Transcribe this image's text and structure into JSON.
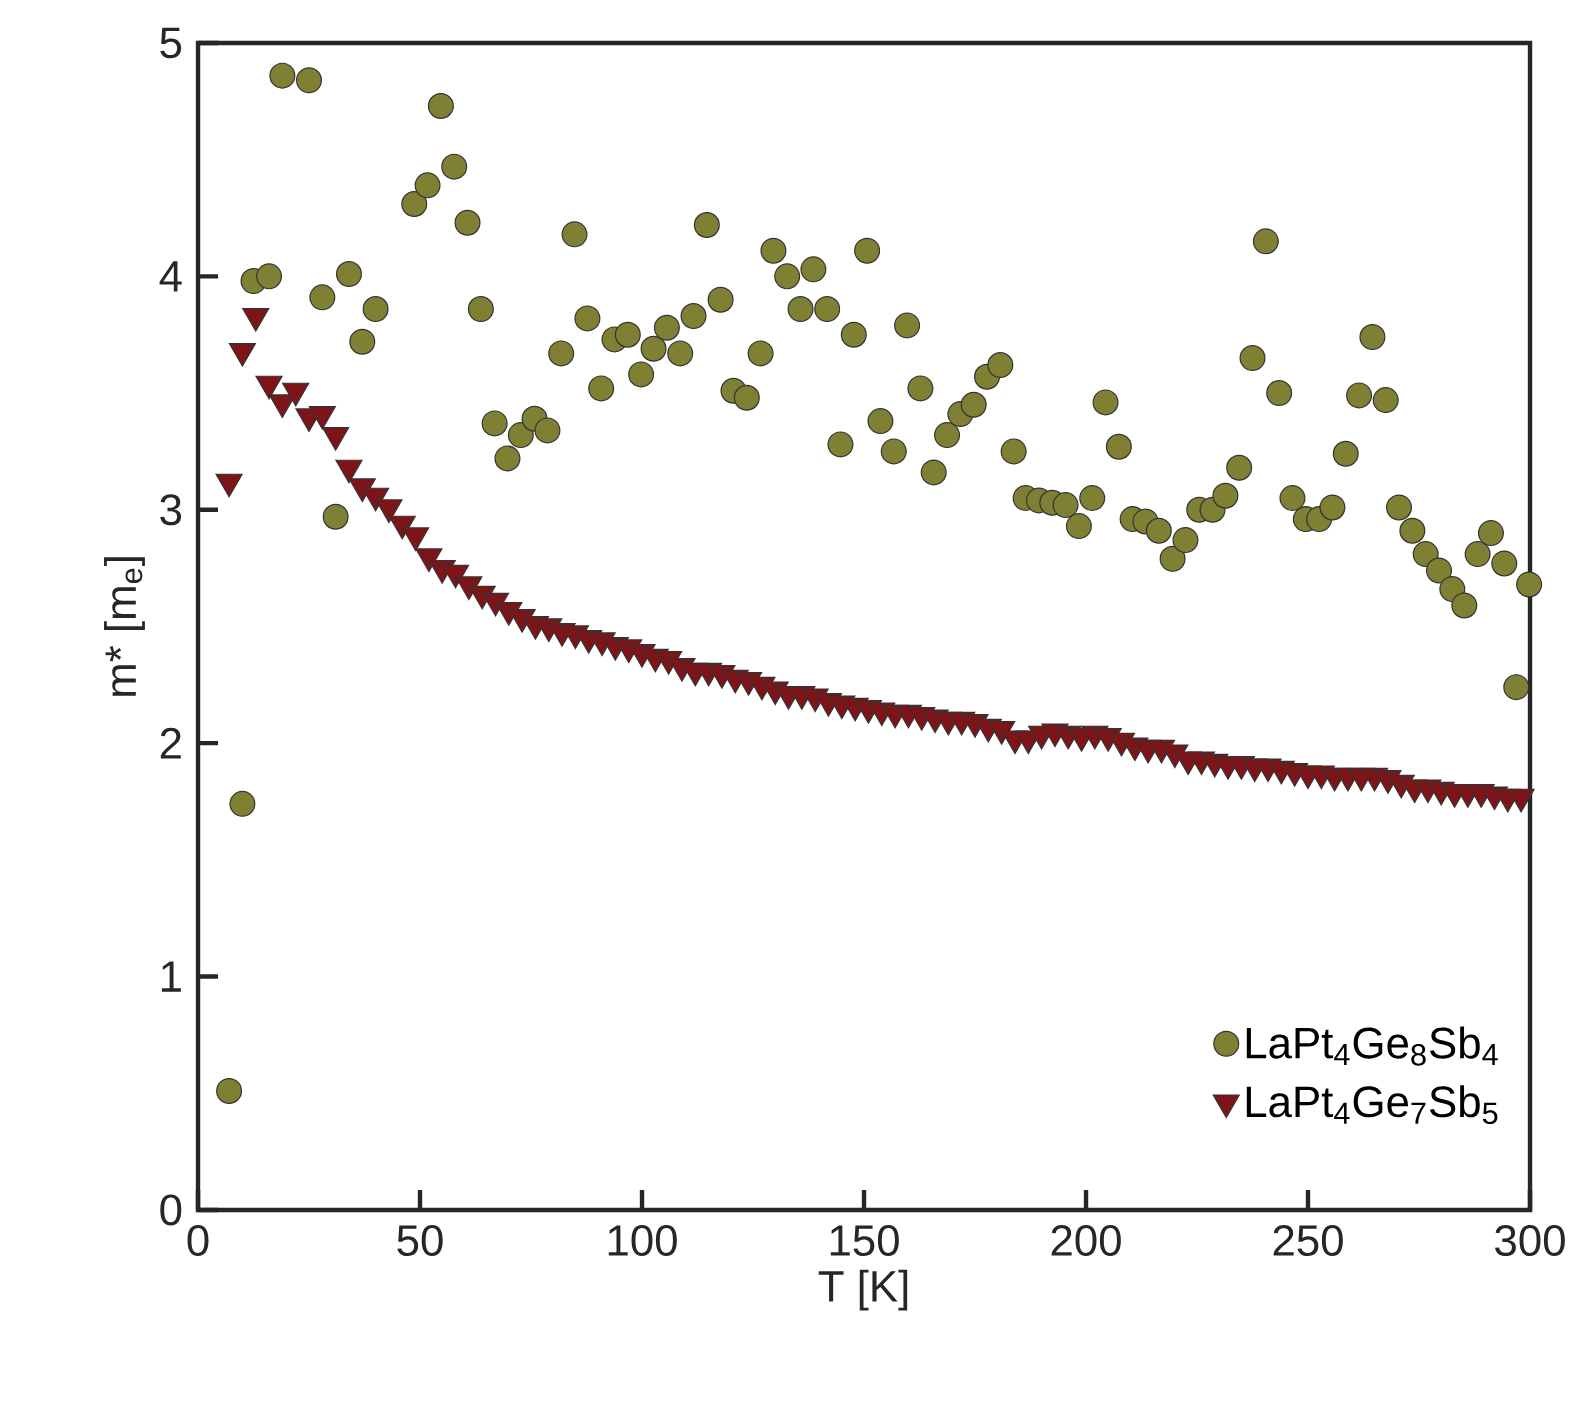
{
  "chart_data": {
    "type": "scatter",
    "xlabel": "T [K]",
    "ylabel": "m* [m$_{e}$]",
    "xlim": [
      0,
      300
    ],
    "ylim": [
      0,
      5
    ],
    "xticks": [
      0,
      50,
      100,
      150,
      200,
      250,
      300
    ],
    "yticks": [
      0,
      1,
      2,
      3,
      4,
      5
    ],
    "grid": false,
    "legend": "bottom right",
    "series": [
      {
        "name": "LaPt$_{4}$Ge$_{8}$Sb$_{4}$",
        "color": "#808035",
        "marker": "circle",
        "x": [
          7.0,
          10.0,
          12.5,
          16.0,
          19.0,
          25.0,
          28.0,
          31.0,
          34.0,
          37.0,
          40.0,
          48.7,
          51.7,
          54.7,
          57.7,
          60.7,
          63.7,
          66.8,
          69.7,
          72.7,
          75.8,
          78.7,
          81.8,
          84.8,
          87.7,
          90.8,
          93.8,
          96.8,
          99.8,
          102.6,
          105.6,
          108.6,
          111.6,
          114.6,
          117.7,
          120.6,
          123.6,
          126.7,
          129.6,
          132.7,
          135.7,
          138.6,
          141.7,
          144.7,
          147.7,
          150.7,
          153.7,
          156.7,
          159.7,
          162.7,
          165.7,
          168.7,
          171.7,
          174.7,
          177.7,
          180.7,
          183.7,
          186.4,
          189.4,
          192.4,
          195.4,
          198.4,
          201.4,
          204.4,
          207.4,
          210.5,
          213.4,
          216.4,
          219.5,
          222.4,
          225.5,
          228.5,
          231.4,
          234.5,
          237.5,
          240.5,
          243.5,
          246.5,
          249.5,
          252.5,
          255.5,
          258.5,
          261.5,
          264.5,
          267.5,
          270.5,
          273.5,
          276.5,
          279.5,
          282.5,
          285.2,
          288.2,
          291.2,
          294.2,
          296.9,
          299.8
        ],
        "values": [
          0.51,
          1.74,
          3.98,
          4.0,
          4.86,
          4.84,
          3.91,
          2.97,
          4.01,
          3.72,
          3.86,
          4.31,
          4.39,
          4.73,
          4.47,
          4.23,
          3.86,
          3.37,
          3.22,
          3.32,
          3.39,
          3.34,
          3.67,
          4.18,
          3.82,
          3.52,
          3.73,
          3.75,
          3.58,
          3.69,
          3.78,
          3.67,
          3.83,
          4.22,
          3.9,
          3.51,
          3.48,
          3.67,
          4.11,
          4.0,
          3.86,
          4.03,
          3.86,
          3.28,
          3.75,
          4.11,
          3.38,
          3.25,
          3.79,
          3.52,
          3.16,
          3.32,
          3.41,
          3.45,
          3.57,
          3.62,
          3.25,
          3.05,
          3.04,
          3.03,
          3.02,
          2.93,
          3.05,
          3.46,
          3.27,
          2.96,
          2.95,
          2.91,
          2.79,
          2.87,
          3.0,
          3.0,
          3.06,
          3.18,
          3.65,
          4.15,
          3.5,
          3.05,
          2.96,
          2.96,
          3.01,
          3.24,
          3.49,
          3.74,
          3.47,
          3.01,
          2.91,
          2.81,
          2.74,
          2.66,
          2.59,
          2.81,
          2.9,
          2.77,
          2.24,
          2.68
        ]
      },
      {
        "name": "LaPt$_{4}$Ge$_{7}$Sb$_{5}$",
        "color": "#7f1418",
        "marker": "triangle",
        "x": [
          7,
          10,
          13,
          16,
          19,
          22,
          25,
          28,
          31,
          34,
          37,
          40,
          43,
          46,
          49,
          52,
          55,
          58,
          61,
          64,
          67,
          70,
          73,
          76,
          79,
          82,
          85,
          88,
          91,
          94,
          97,
          100,
          103,
          106,
          109,
          112,
          115,
          118,
          121,
          124,
          127,
          130,
          133,
          136,
          139,
          142,
          145,
          148,
          151,
          154,
          157,
          160,
          163,
          166,
          169,
          172,
          175,
          178,
          181,
          184,
          187,
          190,
          193,
          196,
          199,
          202,
          205,
          208,
          211,
          214,
          217,
          220,
          223,
          226,
          229,
          232,
          235,
          238,
          241,
          244,
          247,
          250,
          253,
          256,
          259,
          262,
          265,
          268,
          271,
          274,
          277,
          280,
          283,
          286,
          289,
          292,
          295,
          298
        ],
        "values": [
          3.12,
          3.68,
          3.83,
          3.54,
          3.46,
          3.51,
          3.4,
          3.41,
          3.32,
          3.18,
          3.1,
          3.06,
          3.01,
          2.94,
          2.89,
          2.8,
          2.75,
          2.73,
          2.68,
          2.64,
          2.61,
          2.57,
          2.54,
          2.51,
          2.5,
          2.48,
          2.47,
          2.45,
          2.44,
          2.42,
          2.41,
          2.39,
          2.37,
          2.36,
          2.33,
          2.31,
          2.31,
          2.3,
          2.28,
          2.27,
          2.25,
          2.23,
          2.21,
          2.21,
          2.2,
          2.18,
          2.17,
          2.16,
          2.15,
          2.14,
          2.13,
          2.13,
          2.12,
          2.11,
          2.1,
          2.1,
          2.09,
          2.07,
          2.06,
          2.02,
          2.02,
          2.04,
          2.05,
          2.04,
          2.03,
          2.04,
          2.03,
          2.01,
          1.99,
          1.98,
          1.98,
          1.96,
          1.93,
          1.93,
          1.92,
          1.91,
          1.91,
          1.9,
          1.9,
          1.89,
          1.88,
          1.87,
          1.87,
          1.86,
          1.86,
          1.86,
          1.86,
          1.85,
          1.83,
          1.81,
          1.81,
          1.8,
          1.79,
          1.79,
          1.79,
          1.78,
          1.77,
          1.77
        ]
      }
    ]
  }
}
